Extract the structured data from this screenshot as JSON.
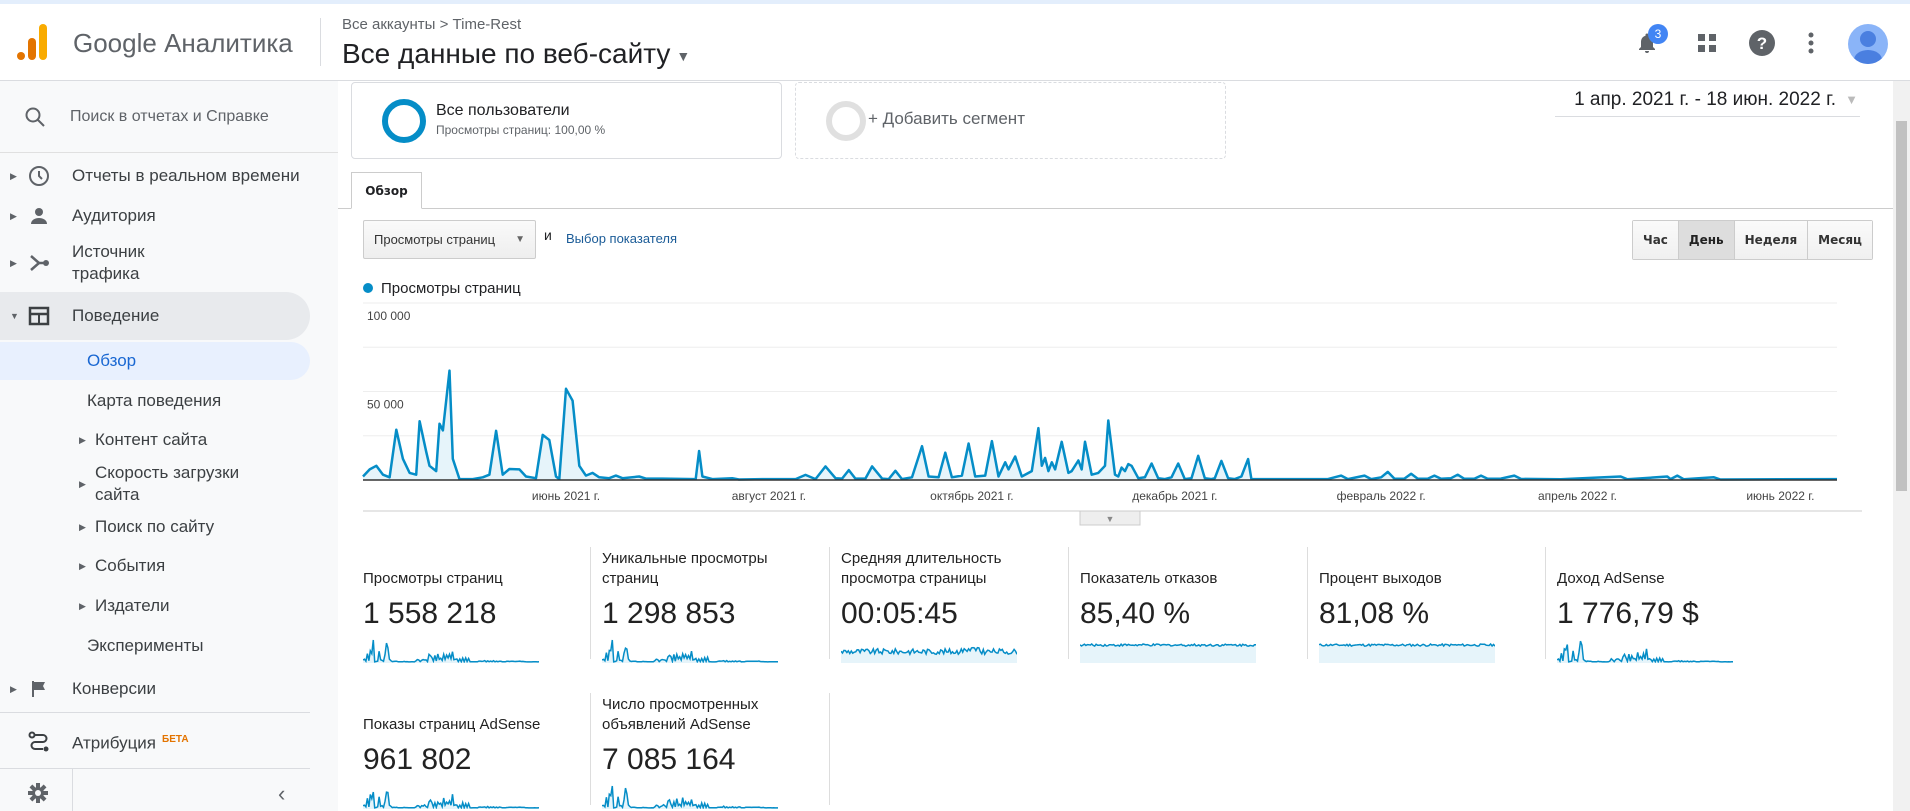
{
  "header": {
    "brand": "Google Аналитика",
    "breadcrumb": "Все аккаунты > Time-Rest",
    "view_title": "Все данные по веб-сайту",
    "notifications_count": "3"
  },
  "sidebar": {
    "search_placeholder": "Поиск в отчетах и Справке",
    "items": [
      {
        "label": "Отчеты в реальном времени",
        "icon": "clock-icon"
      },
      {
        "label": "Аудитория",
        "icon": "person-icon"
      },
      {
        "label": "Источник трафика",
        "icon": "acquisition-icon"
      },
      {
        "label": "Поведение",
        "icon": "behavior-icon"
      },
      {
        "label": "Конверсии",
        "icon": "flag-icon"
      },
      {
        "label": "Атрибуция",
        "icon": "attribution-icon",
        "badge": "БЕТА"
      }
    ],
    "behavior_sub": [
      "Обзор",
      "Карта поведения",
      "Контент сайта",
      "Скорость загрузки сайта",
      "Поиск по сайту",
      "События",
      "Издатели",
      "Эксперименты"
    ]
  },
  "segments": {
    "all_users": "Все пользователи",
    "all_users_sub": "Просмотры страниц: 100,00 %",
    "add_segment": "+ Добавить сегмент"
  },
  "date_range": "1 апр. 2021 г. - 18 июн. 2022 г.",
  "tabs": {
    "overview": "Обзор"
  },
  "controls": {
    "metric_select": "Просмотры страниц",
    "and": "и",
    "pick_metric": "Выбор показателя",
    "granularity": [
      "Час",
      "День",
      "Неделя",
      "Месяц"
    ],
    "active_granularity": "День"
  },
  "colors": {
    "series": "#058dc7",
    "fill": "#e6f4fa",
    "active_nav": "#1967d2"
  },
  "chart_data": {
    "type": "area",
    "series_name": "Просмотры страниц",
    "x_start": "2021-04-01",
    "x_end": "2022-06-18",
    "x_unit": "days since 2021-04-01",
    "x_max": 443,
    "ylim": [
      0,
      100000
    ],
    "yticks": [
      {
        "v": 100000,
        "label": "100 000"
      },
      {
        "v": 50000,
        "label": "50 000"
      }
    ],
    "xticks": [
      {
        "d": 61,
        "label": "июнь 2021 г."
      },
      {
        "d": 122,
        "label": "август 2021 г."
      },
      {
        "d": 183,
        "label": "октябрь 2021 г."
      },
      {
        "d": 244,
        "label": "декабрь 2021 г."
      },
      {
        "d": 306,
        "label": "февраль 2022 г."
      },
      {
        "d": 365,
        "label": "апрель 2022 г."
      },
      {
        "d": 426,
        "label": "июнь 2022 г."
      }
    ],
    "points": [
      [
        0,
        2000
      ],
      [
        2,
        6000
      ],
      [
        4,
        8000
      ],
      [
        6,
        3000
      ],
      [
        8,
        1500
      ],
      [
        10,
        28400
      ],
      [
        12,
        12000
      ],
      [
        14,
        4000
      ],
      [
        16,
        3000
      ],
      [
        17,
        33200
      ],
      [
        19,
        16000
      ],
      [
        20,
        8000
      ],
      [
        22,
        5000
      ],
      [
        23,
        31800
      ],
      [
        24,
        28000
      ],
      [
        26,
        61800
      ],
      [
        27,
        12000
      ],
      [
        29,
        500
      ],
      [
        33,
        500
      ],
      [
        36,
        1500
      ],
      [
        38,
        3000
      ],
      [
        40,
        27800
      ],
      [
        42,
        3000
      ],
      [
        44,
        6200
      ],
      [
        47,
        6000
      ],
      [
        49,
        2000
      ],
      [
        52,
        1000
      ],
      [
        54,
        25500
      ],
      [
        56,
        22600
      ],
      [
        58,
        2000
      ],
      [
        59,
        500
      ],
      [
        61,
        51500
      ],
      [
        63,
        44800
      ],
      [
        65,
        8000
      ],
      [
        67,
        2500
      ],
      [
        69,
        4000
      ],
      [
        71,
        1500
      ],
      [
        74,
        1000
      ],
      [
        76,
        2500
      ],
      [
        78,
        1000
      ],
      [
        83,
        2000
      ],
      [
        85,
        800
      ],
      [
        90,
        800
      ],
      [
        100,
        500
      ],
      [
        101,
        16400
      ],
      [
        102,
        2000
      ],
      [
        105,
        500
      ],
      [
        111,
        1000
      ],
      [
        113,
        300
      ],
      [
        120,
        500
      ],
      [
        130,
        500
      ],
      [
        133,
        2900
      ],
      [
        136,
        500
      ],
      [
        139,
        7700
      ],
      [
        142,
        1000
      ],
      [
        144,
        800
      ],
      [
        146,
        5600
      ],
      [
        148,
        800
      ],
      [
        151,
        800
      ],
      [
        153,
        7700
      ],
      [
        156,
        800
      ],
      [
        158,
        500
      ],
      [
        160,
        5200
      ],
      [
        162,
        500
      ],
      [
        165,
        1500
      ],
      [
        168,
        19100
      ],
      [
        170,
        2000
      ],
      [
        173,
        1500
      ],
      [
        175,
        15400
      ],
      [
        177,
        1500
      ],
      [
        180,
        2500
      ],
      [
        182,
        20600
      ],
      [
        184,
        2000
      ],
      [
        187,
        2500
      ],
      [
        189,
        22000
      ],
      [
        191,
        2000
      ],
      [
        193,
        10000
      ],
      [
        194,
        6000
      ],
      [
        196,
        13300
      ],
      [
        198,
        2000
      ],
      [
        201,
        5000
      ],
      [
        203,
        29300
      ],
      [
        204,
        8000
      ],
      [
        205,
        12500
      ],
      [
        206,
        5000
      ],
      [
        207,
        10000
      ],
      [
        208,
        6000
      ],
      [
        210,
        21600
      ],
      [
        212,
        4000
      ],
      [
        213,
        5000
      ],
      [
        215,
        11000
      ],
      [
        216,
        6000
      ],
      [
        217,
        21600
      ],
      [
        219,
        3000
      ],
      [
        221,
        4000
      ],
      [
        223,
        8000
      ],
      [
        224,
        33600
      ],
      [
        226,
        3000
      ],
      [
        227,
        2000
      ],
      [
        228,
        7000
      ],
      [
        229,
        5000
      ],
      [
        230,
        9000
      ],
      [
        231,
        8000
      ],
      [
        233,
        1000
      ],
      [
        235,
        1500
      ],
      [
        237,
        9300
      ],
      [
        239,
        1000
      ],
      [
        241,
        500
      ],
      [
        243,
        1500
      ],
      [
        245,
        9300
      ],
      [
        247,
        500
      ],
      [
        249,
        1000
      ],
      [
        251,
        13700
      ],
      [
        253,
        1000
      ],
      [
        255,
        500
      ],
      [
        256,
        1000
      ],
      [
        258,
        10800
      ],
      [
        260,
        1000
      ],
      [
        262,
        500
      ],
      [
        264,
        2000
      ],
      [
        266,
        11800
      ],
      [
        267,
        500
      ],
      [
        290,
        500
      ],
      [
        294,
        2500
      ],
      [
        296,
        500
      ],
      [
        301,
        2500
      ],
      [
        303,
        500
      ],
      [
        306,
        1500
      ],
      [
        308,
        4600
      ],
      [
        310,
        700
      ],
      [
        313,
        800
      ],
      [
        315,
        3500
      ],
      [
        317,
        700
      ],
      [
        320,
        700
      ],
      [
        322,
        2500
      ],
      [
        324,
        700
      ],
      [
        327,
        1000
      ],
      [
        329,
        3000
      ],
      [
        331,
        700
      ],
      [
        334,
        700
      ],
      [
        336,
        2500
      ],
      [
        338,
        700
      ],
      [
        342,
        800
      ],
      [
        346,
        2500
      ],
      [
        348,
        600
      ],
      [
        360,
        400
      ],
      [
        378,
        2000
      ],
      [
        380,
        400
      ],
      [
        392,
        2000
      ],
      [
        393,
        500
      ],
      [
        395,
        2500
      ],
      [
        397,
        400
      ],
      [
        406,
        1500
      ],
      [
        408,
        300
      ],
      [
        443,
        500
      ]
    ]
  },
  "metrics": [
    {
      "title": "Просмотры страниц",
      "value": "1 558 218",
      "spark": "traffic"
    },
    {
      "title": "Уникальные просмотры страниц",
      "value": "1 298 853",
      "spark": "traffic"
    },
    {
      "title": "Средняя длительность просмотра страницы",
      "value": "00:05:45",
      "spark": "flat"
    },
    {
      "title": "Показатель отказов",
      "value": "85,40 %",
      "spark": "high"
    },
    {
      "title": "Процент выходов",
      "value": "81,08 %",
      "spark": "high"
    },
    {
      "title": "Доход AdSense",
      "value": "1 776,79 $",
      "spark": "traffic"
    },
    {
      "title": "Показы страниц AdSense",
      "value": "961 802",
      "spark": "traffic"
    },
    {
      "title": "Число просмотренных объявлений AdSense",
      "value": "7 085 164",
      "spark": "traffic"
    }
  ]
}
